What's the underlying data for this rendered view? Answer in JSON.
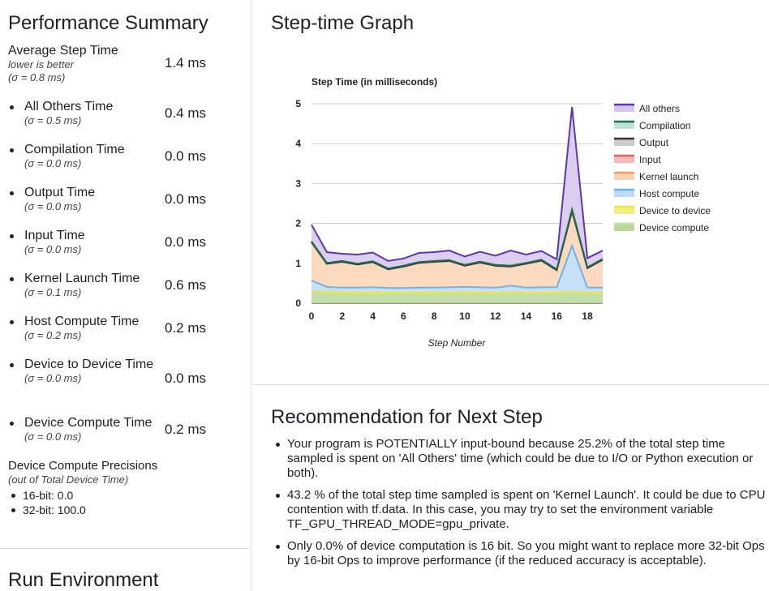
{
  "performance": {
    "title": "Performance Summary",
    "average": {
      "name": "Average Step Time",
      "note": "lower is better",
      "sigma": "(σ = 0.8 ms)",
      "value": "1.4 ms"
    },
    "metrics": [
      {
        "name": "All Others Time",
        "sigma": "(σ = 0.5 ms)",
        "value": "0.4 ms"
      },
      {
        "name": "Compilation Time",
        "sigma": "(σ = 0.0 ms)",
        "value": "0.0 ms"
      },
      {
        "name": "Output Time",
        "sigma": "(σ = 0.0 ms)",
        "value": "0.0 ms"
      },
      {
        "name": "Input Time",
        "sigma": "(σ = 0.0 ms)",
        "value": "0.0 ms"
      },
      {
        "name": "Kernel Launch Time",
        "sigma": "(σ = 0.1 ms)",
        "value": "0.6 ms"
      },
      {
        "name": "Host Compute Time",
        "sigma": "(σ = 0.2 ms)",
        "value": "0.2 ms"
      },
      {
        "name": "Device to Device Time",
        "sigma": "(σ = 0.0 ms)",
        "value": "0.0 ms"
      },
      {
        "name": "Device Compute Time",
        "sigma": "(σ = 0.0 ms)",
        "value": "0.2 ms"
      }
    ],
    "precisions": {
      "title": "Device Compute Precisions",
      "note": "(out of Total Device Time)",
      "items": [
        "16-bit: 0.0",
        "32-bit: 100.0"
      ]
    }
  },
  "run_environment": {
    "title": "Run Environment"
  },
  "graph": {
    "title": "Step-time Graph"
  },
  "chart_data": {
    "type": "area",
    "title": "Step Time (in milliseconds)",
    "xlabel": "Step Number",
    "ylabel": "",
    "x": [
      0,
      1,
      2,
      3,
      4,
      5,
      6,
      7,
      8,
      9,
      10,
      11,
      12,
      13,
      14,
      15,
      16,
      17,
      18,
      19
    ],
    "xticks": [
      0,
      2,
      4,
      6,
      8,
      10,
      12,
      14,
      16,
      18
    ],
    "xlim": [
      0,
      19
    ],
    "ylim": [
      0,
      5
    ],
    "yticks": [
      0,
      1,
      2,
      3,
      4,
      5
    ],
    "grid": true,
    "stacked": true,
    "legend_position": "right",
    "series": [
      {
        "name": "Device compute",
        "color": "#b9d89a",
        "line": "#c5e0a5",
        "values": [
          0.28,
          0.26,
          0.25,
          0.25,
          0.25,
          0.25,
          0.25,
          0.25,
          0.25,
          0.25,
          0.25,
          0.25,
          0.25,
          0.25,
          0.25,
          0.25,
          0.25,
          0.27,
          0.25,
          0.25
        ]
      },
      {
        "name": "Device to device",
        "color": "#f3ef7a",
        "line": "#f0e442",
        "values": [
          0.02,
          0.02,
          0.02,
          0.02,
          0.02,
          0.02,
          0.02,
          0.02,
          0.02,
          0.02,
          0.02,
          0.02,
          0.02,
          0.02,
          0.02,
          0.02,
          0.02,
          0.02,
          0.02,
          0.02
        ]
      },
      {
        "name": "Host compute",
        "color": "#bcdcf6",
        "line": "#6fb2ec",
        "values": [
          0.27,
          0.13,
          0.12,
          0.12,
          0.13,
          0.11,
          0.11,
          0.12,
          0.12,
          0.13,
          0.14,
          0.13,
          0.12,
          0.17,
          0.12,
          0.13,
          0.13,
          1.15,
          0.12,
          0.12
        ]
      },
      {
        "name": "Kernel launch",
        "color": "#fbd3b4",
        "line": "#f79a5a",
        "values": [
          0.96,
          0.58,
          0.65,
          0.58,
          0.63,
          0.47,
          0.54,
          0.62,
          0.65,
          0.66,
          0.53,
          0.62,
          0.55,
          0.48,
          0.6,
          0.67,
          0.43,
          0.87,
          0.49,
          0.7
        ]
      },
      {
        "name": "Input",
        "color": "#f6b8b8",
        "line": "#e06666",
        "values": [
          0,
          0,
          0,
          0,
          0,
          0,
          0,
          0,
          0,
          0,
          0,
          0,
          0,
          0,
          0,
          0,
          0,
          0,
          0,
          0
        ]
      },
      {
        "name": "Output",
        "color": "#cccccc",
        "line": "#333333",
        "values": [
          0,
          0,
          0,
          0,
          0,
          0,
          0,
          0,
          0,
          0,
          0,
          0,
          0,
          0,
          0,
          0,
          0,
          0,
          0,
          0
        ]
      },
      {
        "name": "Compilation",
        "color": "#bfe3d5",
        "line": "#1e6b52",
        "values": [
          0.02,
          0.02,
          0.02,
          0.02,
          0.02,
          0.02,
          0.02,
          0.02,
          0.02,
          0.02,
          0.02,
          0.02,
          0.02,
          0.02,
          0.02,
          0.02,
          0.02,
          0.04,
          0.02,
          0.02
        ]
      },
      {
        "name": "All others",
        "color": "#d6c6ec",
        "line": "#5e35b1",
        "values": [
          0.42,
          0.27,
          0.18,
          0.23,
          0.22,
          0.19,
          0.18,
          0.23,
          0.22,
          0.24,
          0.21,
          0.25,
          0.23,
          0.38,
          0.21,
          0.22,
          0.25,
          2.57,
          0.23,
          0.21
        ]
      }
    ]
  },
  "recommendation": {
    "title": "Recommendation for Next Step",
    "items": [
      "Your program is POTENTIALLY input-bound because 25.2% of the total step time sampled is spent on 'All Others' time (which could be due to I/O or Python execution or both).",
      "43.2 % of the total step time sampled is spent on 'Kernel Launch'. It could be due to CPU contention with tf.data. In this case, you may try to set the environment variable TF_GPU_THREAD_MODE=gpu_private.",
      "Only 0.0% of device computation is 16 bit. So you might want to replace more 32-bit Ops by 16-bit Ops to improve performance (if the reduced accuracy is acceptable)."
    ]
  }
}
